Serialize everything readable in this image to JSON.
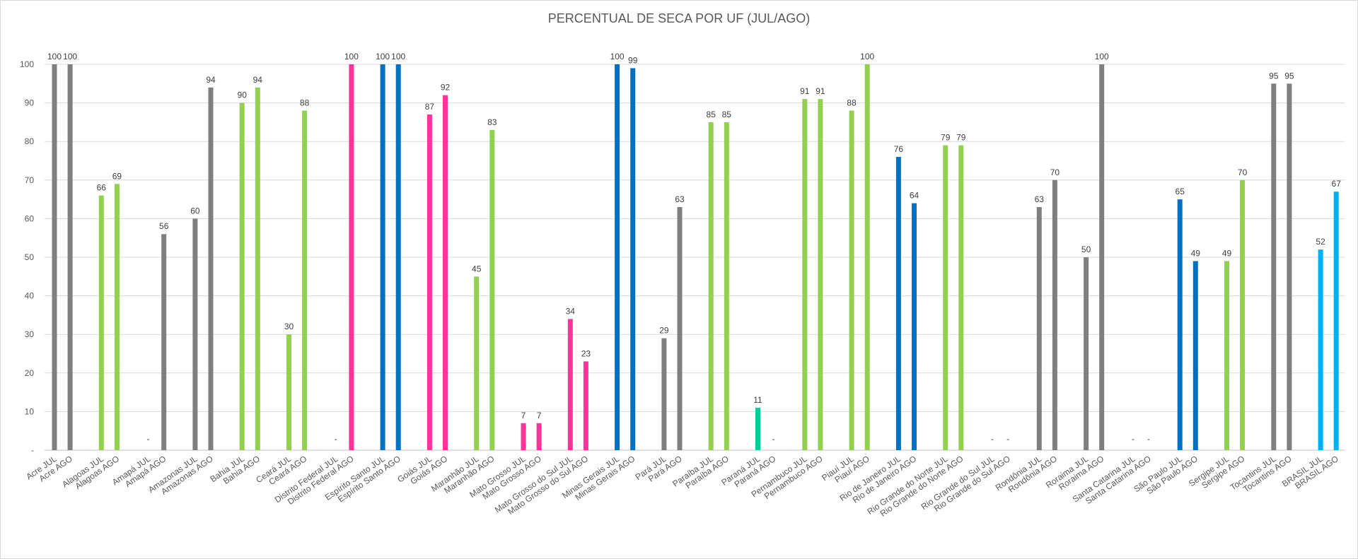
{
  "chart_data": {
    "type": "bar",
    "title": "PERCENTUAL DE SECA POR UF (JUL/AGO)",
    "xlabel": "",
    "ylabel": "",
    "ylim": [
      0,
      100
    ],
    "y_ticks": [
      "-",
      "10",
      "20",
      "30",
      "40",
      "50",
      "60",
      "70",
      "80",
      "90",
      "100"
    ],
    "grid": true,
    "legend": "none",
    "colors": {
      "gray": "#7f7f7f",
      "lime": "#92d050",
      "pink": "#ff3399",
      "blue": "#0070c0",
      "teal": "#00cc99",
      "cyan": "#00b0f0",
      "grid": "#d9d9d9",
      "axis": "#bfbfbf"
    },
    "categories": [
      "Acre JUL",
      "Acre AGO",
      "Alagoas JUL",
      "Alagoas AGO",
      "Amapá JUL",
      "Amapá AGO",
      "Amazonas JUL",
      "Amazonas AGO",
      "Bahia JUL",
      "Bahia AGO",
      "Ceará JUL",
      "Ceará AGO",
      "Distrito Federal JUL",
      "Distrito Federal AGO",
      "Espírito Santo JUL",
      "Espírito Santo AGO",
      "Goiás JUL",
      "Goiás AGO",
      "Maranhão JUL",
      "Maranhão AGO",
      "Mato Grosso JUL",
      "Mato Grosso AGO",
      "Mato Grosso do Sul JUL",
      "Mato Grosso do Sul AGO",
      "Minas Gerais JUL",
      "Minas Gerais AGO",
      "Pará JUL",
      "Pará AGO",
      "Paraíba JUL",
      "Paraíba AGO",
      "Paraná JUL",
      "Paraná AGO",
      "Pernambuco JUL",
      "Pernambuco AGO",
      "Piauí JUL",
      "Piauí AGO",
      "Rio de Janeiro JUL",
      "Rio de Janeiro AGO",
      "Rio Grande do Norte JUL",
      "Rio Grande do Norte AGO",
      "Rio Grande do Sul JUL",
      "Rio Grande do Sul AGO",
      "Rondônia JUL",
      "Rondônia AGO",
      "Roraima JUL",
      "Roraima AGO",
      "Santa Catarina JUL",
      "Santa Catarina AGO",
      "São Paulo JUL",
      "São Paulo AGO",
      "Sergipe JUL",
      "Sergipe AGO",
      "Tocantins JUL",
      "Tocantins AGO",
      "BRASIL JUL",
      "BRASIL AGO"
    ],
    "values": [
      100,
      100,
      66,
      69,
      0,
      56,
      60,
      94,
      90,
      94,
      30,
      88,
      0,
      100,
      100,
      100,
      87,
      92,
      45,
      83,
      7,
      7,
      34,
      23,
      100,
      99,
      29,
      63,
      85,
      85,
      11,
      0,
      91,
      91,
      88,
      100,
      76,
      64,
      79,
      79,
      0,
      0,
      63,
      70,
      50,
      100,
      0,
      0,
      65,
      49,
      49,
      70,
      95,
      95,
      52,
      67
    ],
    "data_labels": [
      "100",
      "100",
      "66",
      "69",
      "-",
      "56",
      "60",
      "94",
      "90",
      "94",
      "30",
      "88",
      "-",
      "100",
      "100",
      "100",
      "87",
      "92",
      "45",
      "83",
      "7",
      "7",
      "34",
      "23",
      "100",
      "99",
      "29",
      "63",
      "85",
      "85",
      "11",
      "-",
      "91",
      "91",
      "88",
      "100",
      "76",
      "64",
      "79",
      "79",
      "-",
      "-",
      "63",
      "70",
      "50",
      "100",
      "-",
      "-",
      "65",
      "49",
      "49",
      "70",
      "95",
      "95",
      "52",
      "67"
    ],
    "bar_colors": [
      "gray",
      "gray",
      "lime",
      "lime",
      "gray",
      "gray",
      "gray",
      "gray",
      "lime",
      "lime",
      "lime",
      "lime",
      "pink",
      "pink",
      "blue",
      "blue",
      "pink",
      "pink",
      "lime",
      "lime",
      "pink",
      "pink",
      "pink",
      "pink",
      "blue",
      "blue",
      "gray",
      "gray",
      "lime",
      "lime",
      "teal",
      "teal",
      "lime",
      "lime",
      "lime",
      "lime",
      "blue",
      "blue",
      "lime",
      "lime",
      "lime",
      "lime",
      "gray",
      "gray",
      "gray",
      "gray",
      "blue",
      "blue",
      "blue",
      "blue",
      "lime",
      "lime",
      "gray",
      "gray",
      "cyan",
      "cyan"
    ]
  }
}
